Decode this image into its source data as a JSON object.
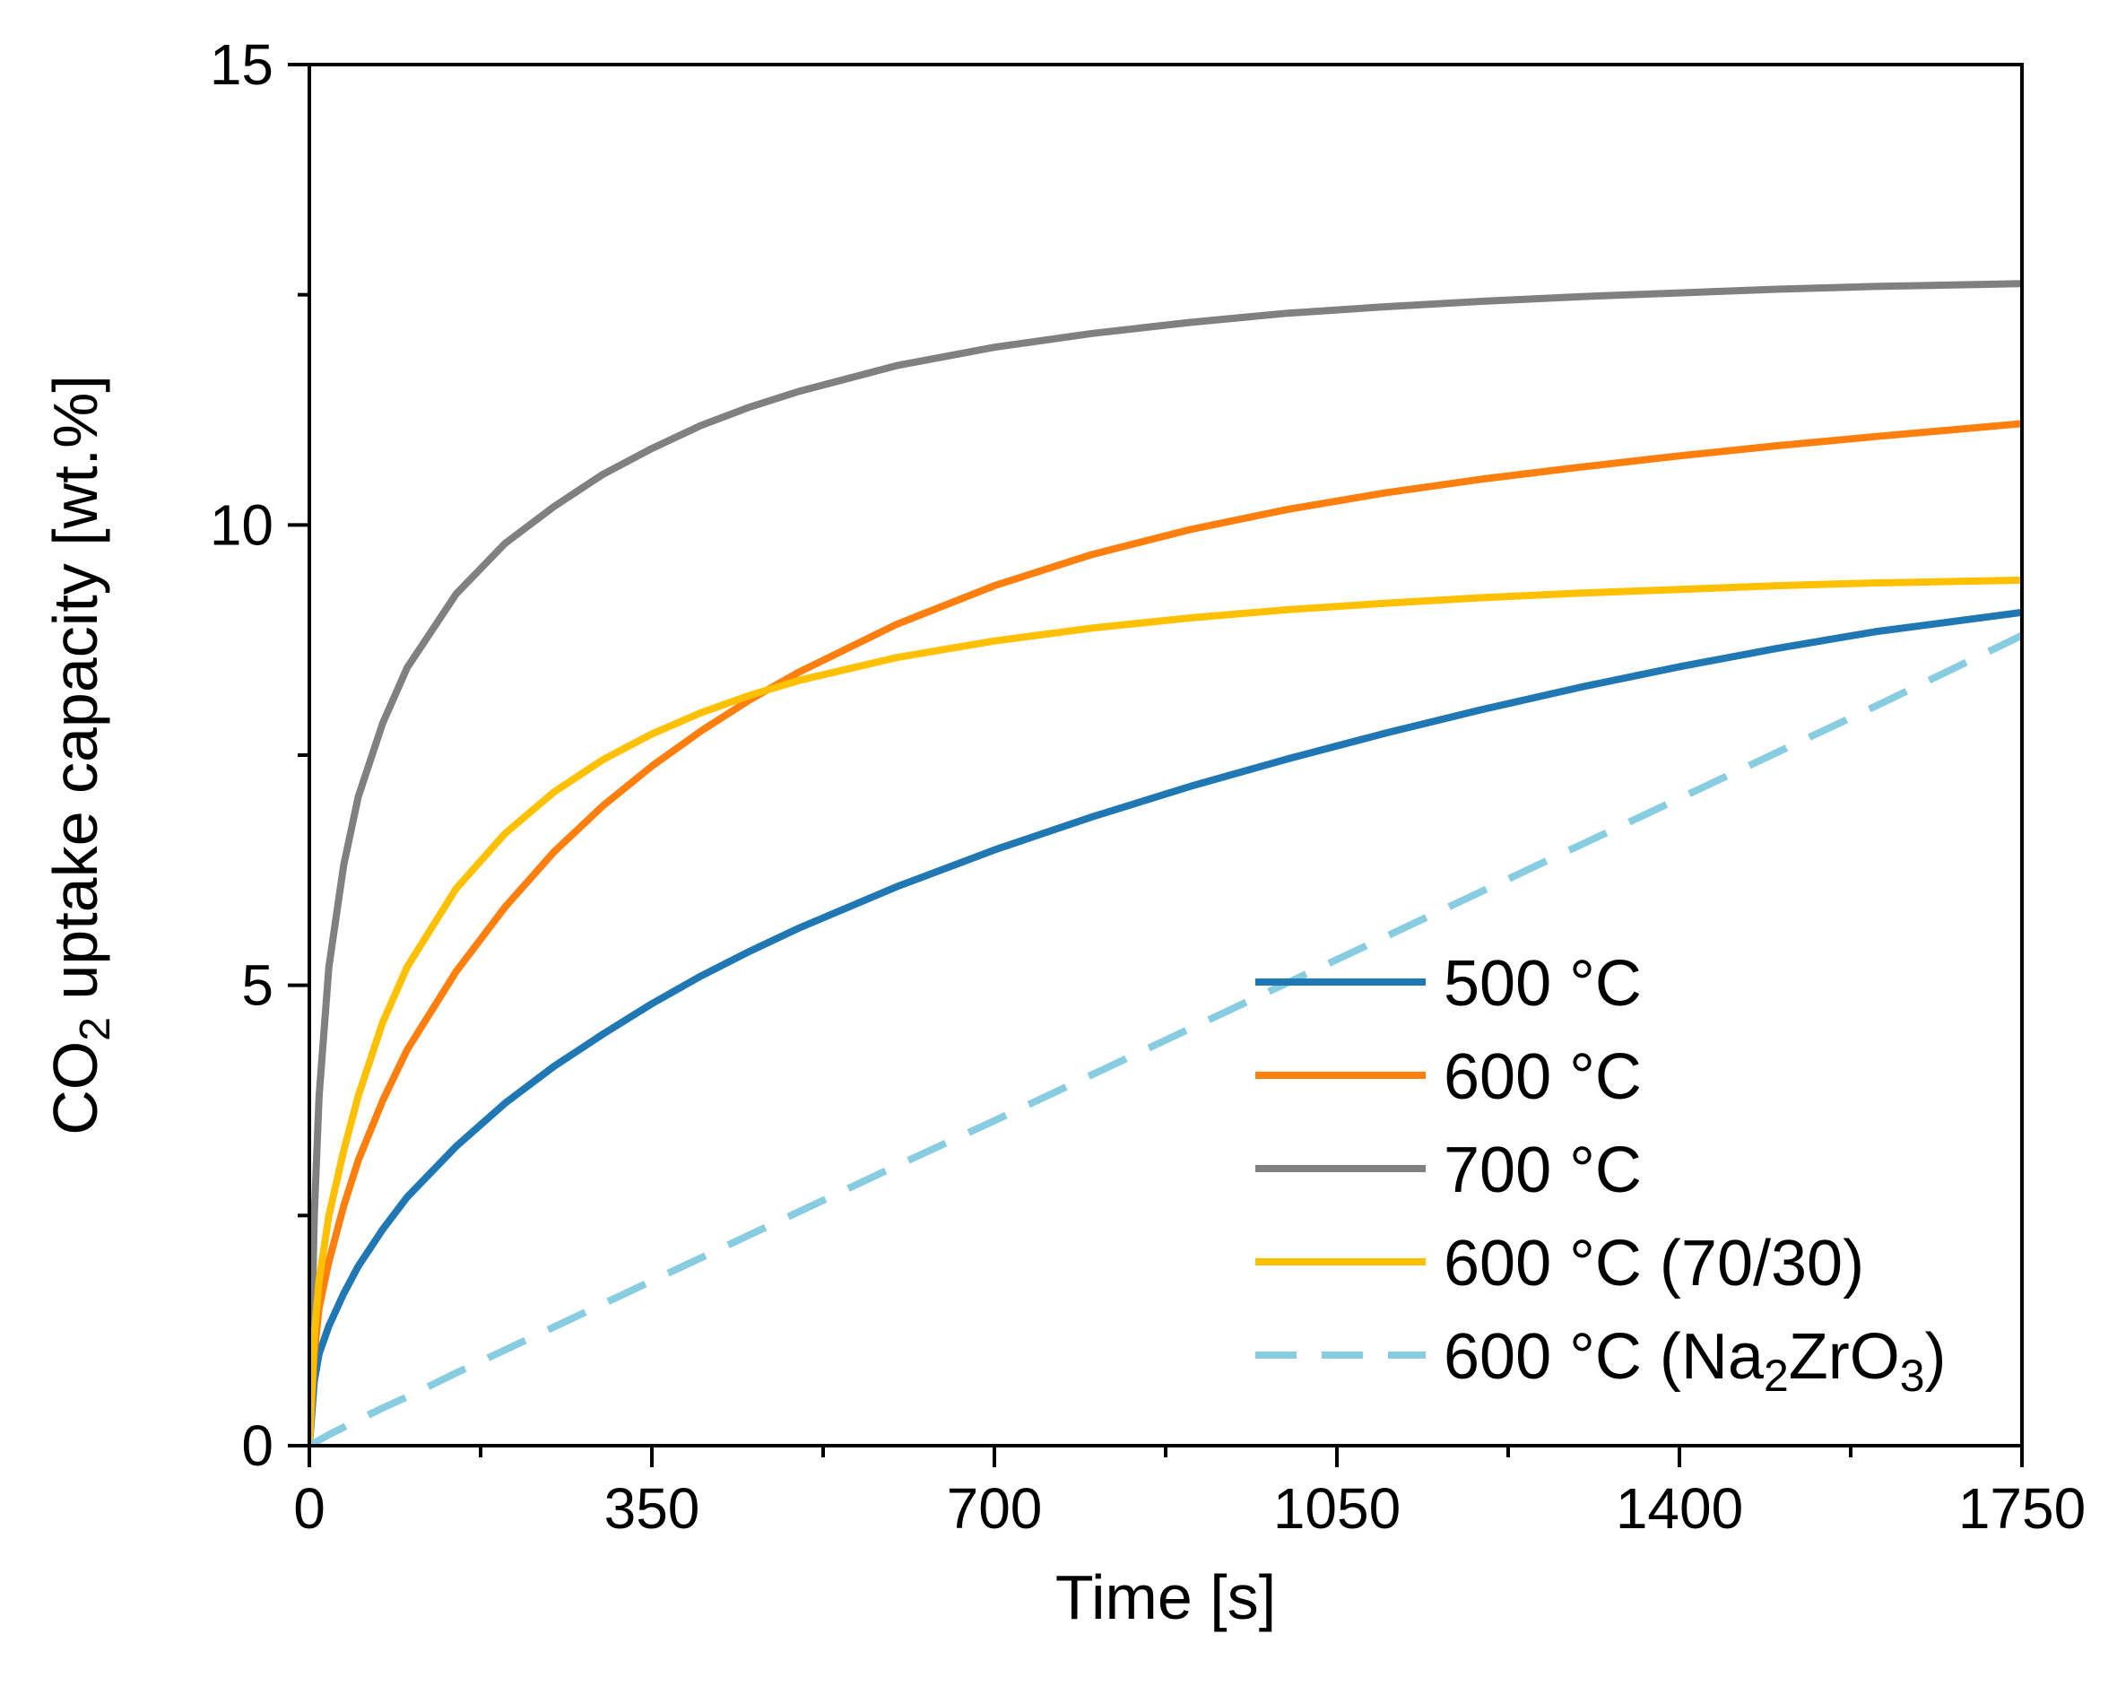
{
  "chart_data": {
    "type": "line",
    "title": "",
    "xlabel": "Time [s]",
    "ylabel_parts": {
      "pre": "CO",
      "sub": "2",
      "post": " uptake capacity [wt.%]"
    },
    "xlim": [
      0,
      1750
    ],
    "ylim": [
      0,
      15
    ],
    "x_ticks": [
      0,
      350,
      700,
      1050,
      1400,
      1750
    ],
    "x_tick_labels": [
      "0",
      "350",
      "700",
      "1050",
      "1400",
      "1750"
    ],
    "y_ticks": [
      0,
      5,
      10,
      15
    ],
    "y_tick_labels": [
      "0",
      "5",
      "10",
      "15"
    ],
    "grid": false,
    "legend_position": "bottom-right",
    "x": [
      0,
      5,
      10,
      20,
      35,
      50,
      75,
      100,
      150,
      200,
      250,
      300,
      350,
      400,
      450,
      500,
      600,
      700,
      800,
      900,
      1000,
      1100,
      1200,
      1300,
      1400,
      1500,
      1600,
      1750
    ],
    "series": [
      {
        "name": "500 °C",
        "legend": {
          "pre": "500 °C",
          "sub": "",
          "post": ""
        },
        "color": "#1f77b4",
        "dash": "solid",
        "values": [
          0,
          0.7,
          1.0,
          1.3,
          1.65,
          1.95,
          2.35,
          2.7,
          3.25,
          3.72,
          4.12,
          4.47,
          4.8,
          5.1,
          5.37,
          5.62,
          6.07,
          6.47,
          6.83,
          7.16,
          7.46,
          7.74,
          8.0,
          8.24,
          8.46,
          8.66,
          8.84,
          9.05
        ]
      },
      {
        "name": "600 °C",
        "legend": {
          "pre": "600 °C",
          "sub": "",
          "post": ""
        },
        "color": "#ff7f0e",
        "dash": "solid",
        "values": [
          0,
          1.0,
          1.5,
          2.0,
          2.6,
          3.1,
          3.75,
          4.3,
          5.15,
          5.85,
          6.45,
          6.95,
          7.38,
          7.76,
          8.1,
          8.4,
          8.92,
          9.34,
          9.68,
          9.95,
          10.17,
          10.35,
          10.5,
          10.63,
          10.75,
          10.86,
          10.96,
          11.1
        ]
      },
      {
        "name": "700 °C",
        "legend": {
          "pre": "700 °C",
          "sub": "",
          "post": ""
        },
        "color": "#808080",
        "dash": "solid",
        "values": [
          0,
          2.5,
          3.8,
          5.2,
          6.3,
          7.05,
          7.85,
          8.45,
          9.25,
          9.8,
          10.2,
          10.55,
          10.83,
          11.08,
          11.28,
          11.45,
          11.73,
          11.93,
          12.08,
          12.2,
          12.3,
          12.37,
          12.43,
          12.48,
          12.52,
          12.56,
          12.59,
          12.62
        ]
      },
      {
        "name": "600 °C (70/30)",
        "legend": {
          "pre": "600 °C (70/30)",
          "sub": "",
          "post": ""
        },
        "color": "#ffc000",
        "dash": "solid",
        "values": [
          0,
          1.2,
          1.8,
          2.5,
          3.2,
          3.8,
          4.6,
          5.2,
          6.05,
          6.65,
          7.1,
          7.45,
          7.73,
          7.96,
          8.15,
          8.31,
          8.56,
          8.74,
          8.88,
          8.99,
          9.08,
          9.15,
          9.21,
          9.26,
          9.3,
          9.34,
          9.37,
          9.4
        ]
      },
      {
        "name": "600 °C (Na2ZrO3)",
        "legend": {
          "pre": "600 °C (Na",
          "sub": "2",
          "post": "ZrO"
        },
        "legend_tail_sub": "3",
        "legend_tail_post": ")",
        "color": "#87cce0",
        "dash": "dashed",
        "values": [
          0,
          0.03,
          0.06,
          0.12,
          0.2,
          0.28,
          0.41,
          0.53,
          0.79,
          1.04,
          1.29,
          1.54,
          1.79,
          2.04,
          2.29,
          2.54,
          3.04,
          3.53,
          4.03,
          4.53,
          5.03,
          5.53,
          6.03,
          6.53,
          7.03,
          7.53,
          8.03,
          8.8
        ]
      }
    ]
  }
}
